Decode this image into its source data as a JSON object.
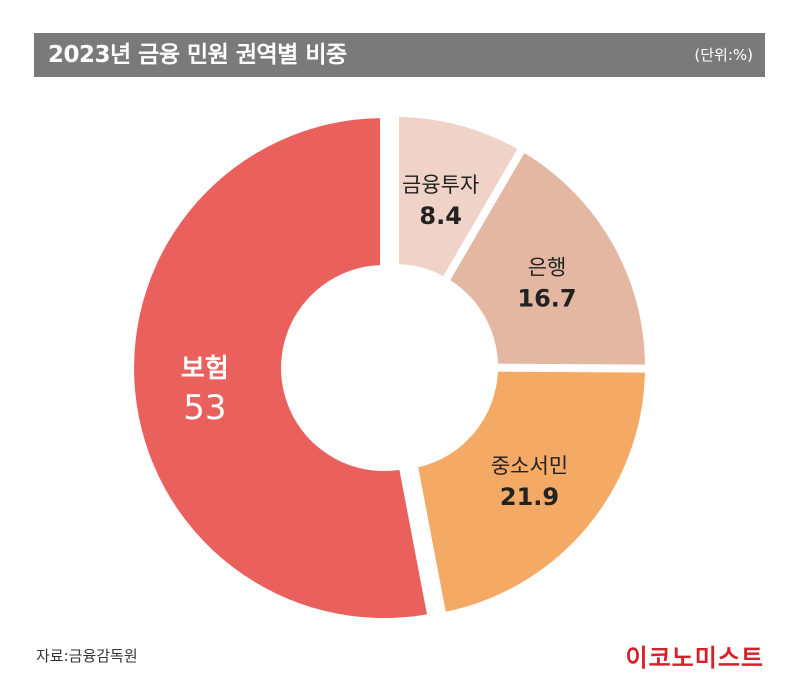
{
  "header": {
    "title": "2023년 금융 민원 권역별 비중",
    "unit": "(단위:%)"
  },
  "chart_data": {
    "type": "pie",
    "title": "2023년 금융 민원 권역별 비중",
    "unit": "%",
    "slices": [
      {
        "label": "금융투자",
        "value": 8.4,
        "color": "#f0d3c8",
        "text_color": "#222222"
      },
      {
        "label": "은행",
        "value": 16.7,
        "color": "#e3b7a1",
        "text_color": "#222222"
      },
      {
        "label": "중소서민",
        "value": 21.9,
        "color": "#f4aa64",
        "text_color": "#222222"
      },
      {
        "label": "보험",
        "value": 53,
        "color": "#e9605d",
        "text_color": "#ffffff"
      }
    ]
  },
  "footer": {
    "source": "자료:금융감독원",
    "brand": "이코노미스트"
  },
  "colors": {
    "title_bar": "#7a7a7a",
    "brand": "#d9202a"
  }
}
